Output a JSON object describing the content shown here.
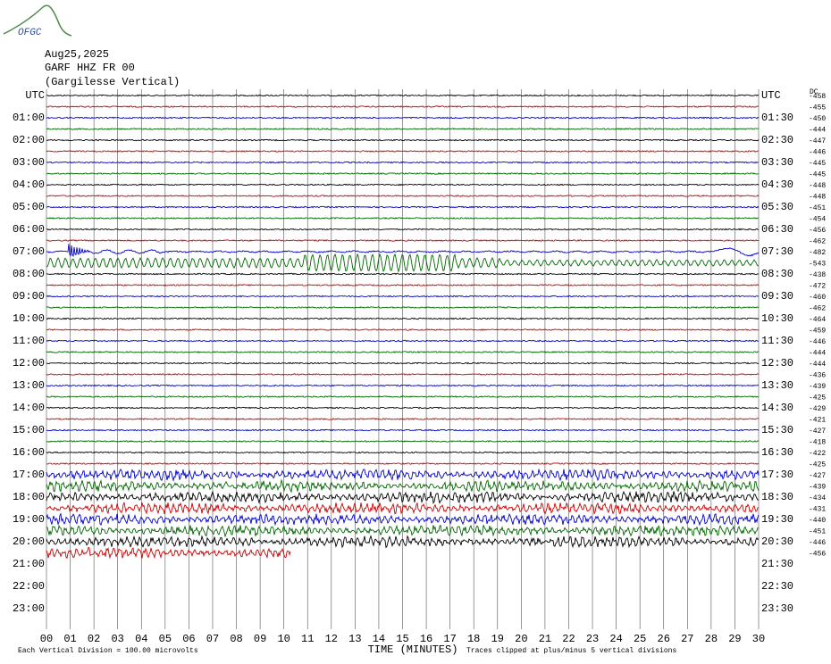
{
  "logo": "OFGC",
  "header": {
    "date": "Aug25,2025",
    "station": "GARF HHZ FR 00",
    "site": "(Gargilesse Vertical)"
  },
  "left_labels": [
    "UTC",
    "01:00",
    "02:00",
    "03:00",
    "04:00",
    "05:00",
    "06:00",
    "07:00",
    "08:00",
    "09:00",
    "10:00",
    "11:00",
    "12:00",
    "13:00",
    "14:00",
    "15:00",
    "16:00",
    "17:00",
    "18:00",
    "19:00",
    "20:00",
    "21:00",
    "22:00",
    "23:00"
  ],
  "right_labels": [
    "UTC",
    "01:30",
    "02:30",
    "03:30",
    "04:30",
    "05:30",
    "06:30",
    "07:30",
    "08:30",
    "09:30",
    "10:30",
    "11:30",
    "12:30",
    "13:30",
    "14:30",
    "15:30",
    "16:30",
    "17:30",
    "18:30",
    "19:30",
    "20:30",
    "21:30",
    "22:30",
    "23:30"
  ],
  "dc_label": "DC",
  "offsets": [
    "-458",
    "-455",
    "-450",
    "-444",
    "-447",
    "-446",
    "-445",
    "-445",
    "-448",
    "-448",
    "-451",
    "-454",
    "-456",
    "-462",
    "-482",
    "-543",
    "-438",
    "-472",
    "-460",
    "-462",
    "-464",
    "-459",
    "-446",
    "-444",
    "-444",
    "-436",
    "-439",
    "-425",
    "-429",
    "-421",
    "-427",
    "-418",
    "-422",
    "-425",
    "-427",
    "-439",
    "-434",
    "-431",
    "-440",
    "-451",
    "-446",
    "-456"
  ],
  "trace_colors": [
    "#000000",
    "#cc0000",
    "#0000cc",
    "#006600"
  ],
  "x_axis": {
    "ticks": [
      "00",
      "01",
      "02",
      "03",
      "04",
      "05",
      "06",
      "07",
      "08",
      "09",
      "10",
      "11",
      "12",
      "13",
      "14",
      "15",
      "16",
      "17",
      "18",
      "19",
      "20",
      "21",
      "22",
      "23",
      "24",
      "25",
      "26",
      "27",
      "28",
      "29",
      "30"
    ],
    "title": "TIME (MINUTES)"
  },
  "footer": {
    "scale": "Each Vertical Division =  100.00 microvolts",
    "clip": "Traces clipped at plus/minus 5 vertical divisions"
  }
}
